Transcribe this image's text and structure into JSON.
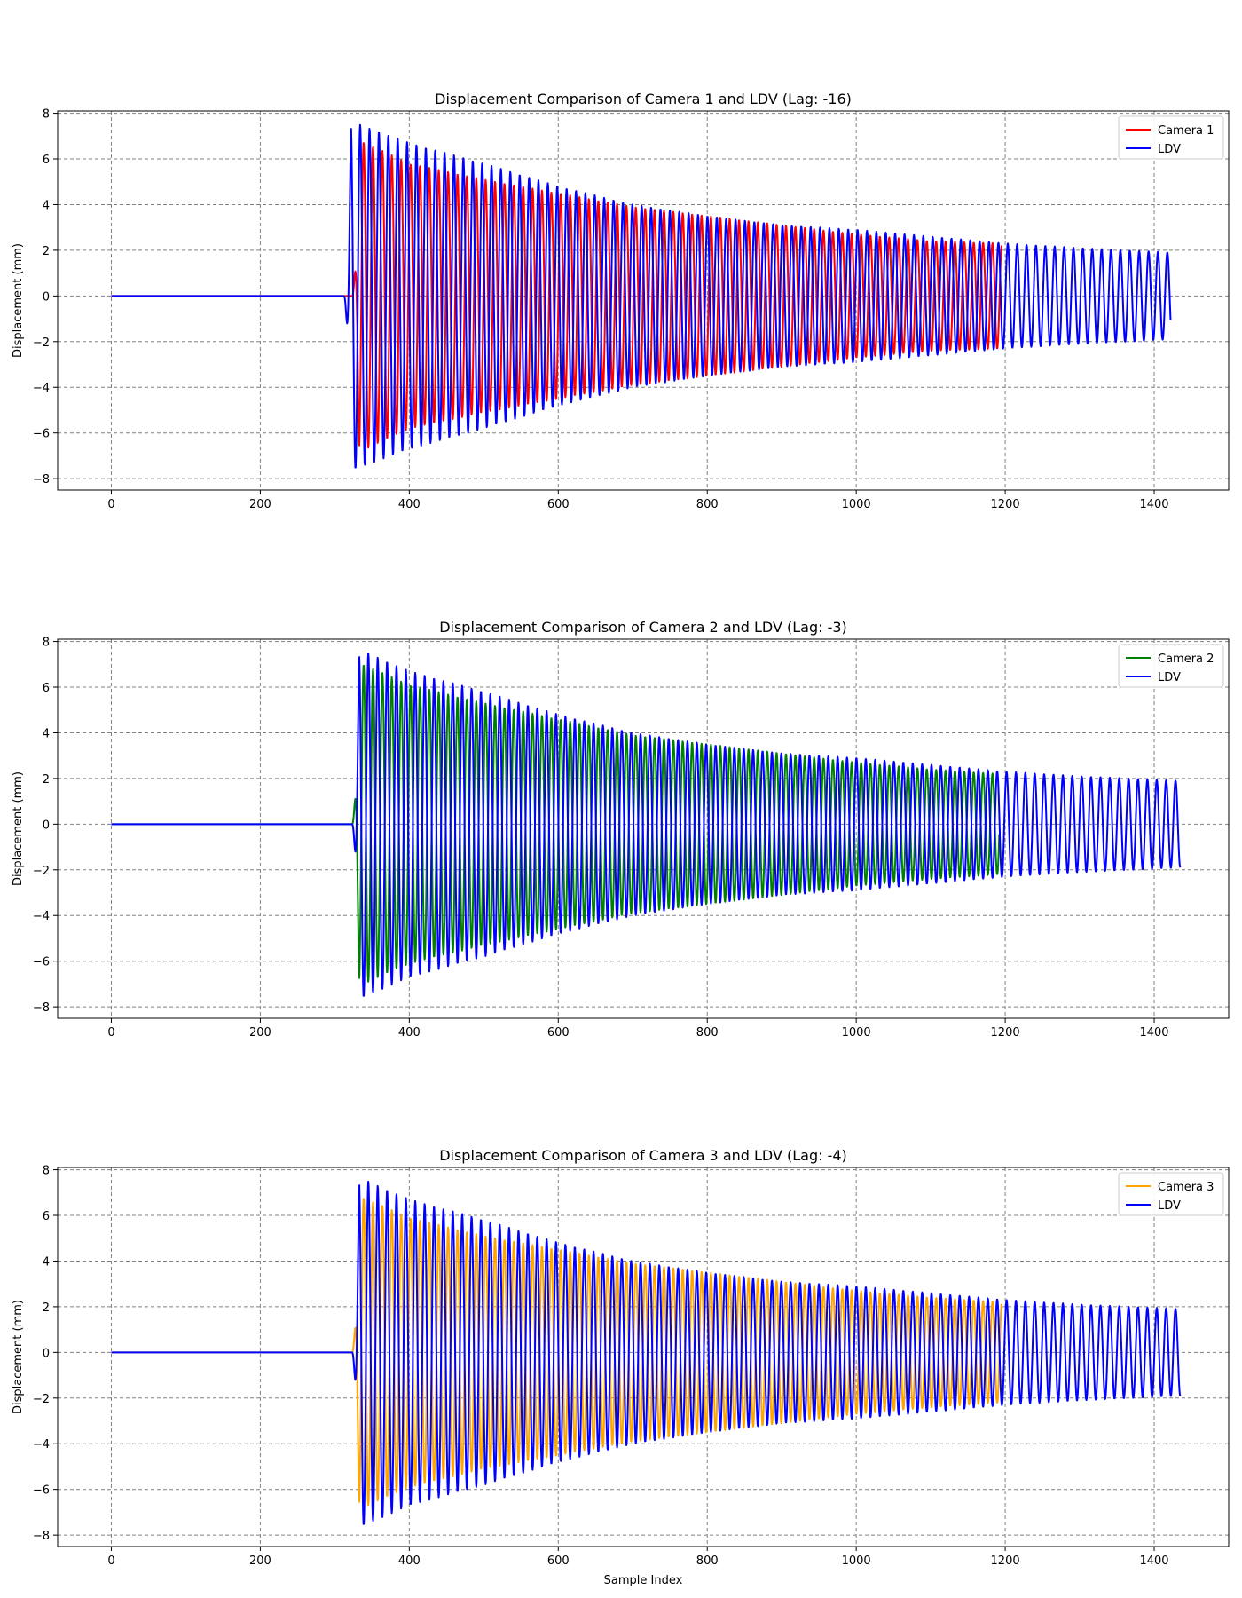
{
  "figure": {
    "xlabel": "Sample Index",
    "grid": true,
    "legend_position": "upper right",
    "colors": {
      "ldv": "#0000ff",
      "camera1": "#ff0000",
      "camera2": "#008000",
      "camera3": "#ffa500",
      "grid": "#808080"
    }
  },
  "chart_data": [
    {
      "type": "line",
      "title": "Displacement Comparison of Camera 1 and LDV (Lag: -16)",
      "xlabel": "",
      "ylabel": "Displacement (mm)",
      "xlim": [
        -72,
        1500
      ],
      "ylim": [
        -8.5,
        8.1
      ],
      "xticks": [
        0,
        200,
        400,
        600,
        800,
        1000,
        1200,
        1400
      ],
      "yticks": [
        -8,
        -6,
        -4,
        -2,
        0,
        2,
        4,
        6,
        8
      ],
      "legend": [
        "Camera 1",
        "LDV"
      ],
      "series": [
        {
          "name": "Camera 1",
          "color": "#ff0000",
          "start": 0,
          "end": 1195,
          "onset": 323,
          "period": 12.6,
          "direction": 1,
          "envelope_x": [
            335,
            400,
            500,
            600,
            700,
            800,
            900,
            1000,
            1100,
            1195
          ],
          "envelope_y": [
            6.8,
            5.8,
            5.1,
            4.5,
            3.9,
            3.5,
            3.1,
            2.7,
            2.4,
            2.3
          ]
        },
        {
          "name": "LDV",
          "color": "#0000ff",
          "start": 0,
          "end": 1422,
          "onset": 312,
          "period": 12.6,
          "direction": -1,
          "envelope_x": [
            325,
            400,
            500,
            600,
            700,
            800,
            900,
            1000,
            1100,
            1200,
            1300,
            1422
          ],
          "envelope_y": [
            7.6,
            6.7,
            5.8,
            4.8,
            4.0,
            3.5,
            3.1,
            2.9,
            2.6,
            2.3,
            2.1,
            1.9
          ]
        }
      ]
    },
    {
      "type": "line",
      "title": "Displacement Comparison of Camera 2 and LDV (Lag: -3)",
      "xlabel": "",
      "ylabel": "Displacement (mm)",
      "xlim": [
        -72,
        1500
      ],
      "ylim": [
        -8.5,
        8.1
      ],
      "xticks": [
        0,
        200,
        400,
        600,
        800,
        1000,
        1200,
        1400
      ],
      "yticks": [
        -8,
        -6,
        -4,
        -2,
        0,
        2,
        4,
        6,
        8
      ],
      "legend": [
        "Camera 2",
        "LDV"
      ],
      "series": [
        {
          "name": "Camera 2",
          "color": "#008000",
          "start": 0,
          "end": 1192,
          "onset": 323,
          "period": 12.6,
          "direction": 1,
          "envelope_x": [
            338,
            400,
            500,
            600,
            700,
            800,
            900,
            1000,
            1100,
            1192
          ],
          "envelope_y": [
            7.0,
            6.1,
            5.3,
            4.6,
            3.9,
            3.5,
            3.1,
            2.7,
            2.4,
            2.2
          ]
        },
        {
          "name": "LDV",
          "color": "#0000ff",
          "start": 0,
          "end": 1435,
          "onset": 323,
          "period": 12.6,
          "direction": -1,
          "envelope_x": [
            337,
            400,
            500,
            600,
            700,
            800,
            900,
            1000,
            1100,
            1200,
            1300,
            1435
          ],
          "envelope_y": [
            7.6,
            6.7,
            5.8,
            4.8,
            4.0,
            3.5,
            3.1,
            2.9,
            2.6,
            2.3,
            2.1,
            1.9
          ]
        }
      ]
    },
    {
      "type": "line",
      "title": "Displacement Comparison of Camera 3 and LDV (Lag: -4)",
      "xlabel": "Sample Index",
      "ylabel": "Displacement (mm)",
      "xlim": [
        -72,
        1500
      ],
      "ylim": [
        -8.5,
        8.1
      ],
      "xticks": [
        0,
        200,
        400,
        600,
        800,
        1000,
        1200,
        1400
      ],
      "yticks": [
        -8,
        -6,
        -4,
        -2,
        0,
        2,
        4,
        6,
        8
      ],
      "legend": [
        "Camera 3",
        "LDV"
      ],
      "series": [
        {
          "name": "Camera 3",
          "color": "#ffa500",
          "start": 0,
          "end": 1195,
          "onset": 323,
          "period": 12.6,
          "direction": 1,
          "envelope_x": [
            337,
            400,
            500,
            600,
            700,
            800,
            900,
            1000,
            1100,
            1195
          ],
          "envelope_y": [
            6.8,
            5.9,
            5.1,
            4.5,
            3.9,
            3.5,
            3.1,
            2.7,
            2.4,
            2.2
          ]
        },
        {
          "name": "LDV",
          "color": "#0000ff",
          "start": 0,
          "end": 1435,
          "onset": 323,
          "period": 12.6,
          "direction": -1,
          "envelope_x": [
            337,
            400,
            500,
            600,
            700,
            800,
            900,
            1000,
            1100,
            1200,
            1300,
            1435
          ],
          "envelope_y": [
            7.6,
            6.7,
            5.8,
            4.8,
            4.0,
            3.5,
            3.1,
            2.9,
            2.6,
            2.3,
            2.1,
            1.9
          ]
        }
      ]
    }
  ]
}
